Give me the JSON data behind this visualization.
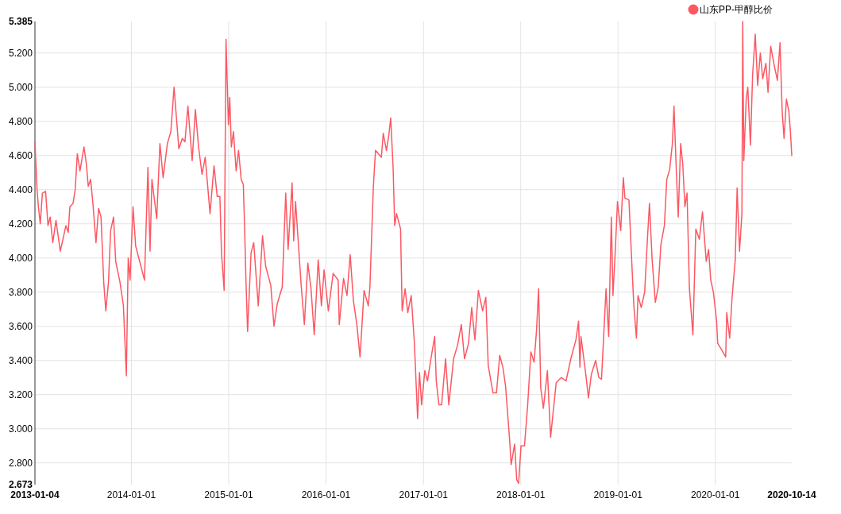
{
  "chart_data": {
    "type": "line",
    "legend": "top right",
    "grid": true,
    "xlim": [
      "2013-01-04",
      "2020-10-14"
    ],
    "xticks": [
      "2013-01-04",
      "2014-01-01",
      "2015-01-01",
      "2016-01-01",
      "2017-01-01",
      "2018-01-01",
      "2019-01-01",
      "2020-01-01",
      "2020-10-14"
    ],
    "ylim": [
      2.673,
      5.385
    ],
    "yticks": [
      {
        "value": 2.673,
        "label": "2.673"
      },
      {
        "value": 2.8,
        "label": "2.800"
      },
      {
        "value": 3.0,
        "label": "3.000"
      },
      {
        "value": 3.2,
        "label": "3.200"
      },
      {
        "value": 3.4,
        "label": "3.400"
      },
      {
        "value": 3.6,
        "label": "3.600"
      },
      {
        "value": 3.8,
        "label": "3.800"
      },
      {
        "value": 4.0,
        "label": "4.000"
      },
      {
        "value": 4.2,
        "label": "4.200"
      },
      {
        "value": 4.4,
        "label": "4.400"
      },
      {
        "value": 4.6,
        "label": "4.600"
      },
      {
        "value": 4.8,
        "label": "4.800"
      },
      {
        "value": 5.0,
        "label": "5.000"
      },
      {
        "value": 5.2,
        "label": "5.200"
      },
      {
        "value": 5.385,
        "label": "5.385"
      }
    ],
    "series": [
      {
        "name": "山东PP-甲醇比价",
        "color": "#fc5863",
        "x": [
          "2013-01-04",
          "2013-01-12",
          "2013-01-17",
          "2013-01-24",
          "2013-02-01",
          "2013-02-13",
          "2013-02-22",
          "2013-03-02",
          "2013-03-12",
          "2013-03-24",
          "2013-04-09",
          "2013-04-22",
          "2013-04-30",
          "2013-05-09",
          "2013-05-15",
          "2013-05-27",
          "2013-06-04",
          "2013-06-12",
          "2013-06-22",
          "2013-07-07",
          "2013-07-16",
          "2013-07-23",
          "2013-08-01",
          "2013-08-10",
          "2013-08-21",
          "2013-08-31",
          "2013-09-09",
          "2013-09-19",
          "2013-09-27",
          "2013-10-07",
          "2013-10-15",
          "2013-10-26",
          "2013-11-03",
          "2013-11-19",
          "2013-12-02",
          "2013-12-13",
          "2013-12-20",
          "2013-12-27",
          "2014-01-07",
          "2014-01-17",
          "2014-02-01",
          "2014-02-19",
          "2014-03-04",
          "2014-03-12",
          "2014-03-19",
          "2014-04-06",
          "2014-04-18",
          "2014-04-30",
          "2014-05-16",
          "2014-05-29",
          "2014-06-10",
          "2014-06-28",
          "2014-07-11",
          "2014-07-21",
          "2014-08-01",
          "2014-08-17",
          "2014-08-29",
          "2014-09-10",
          "2014-09-23",
          "2014-10-05",
          "2014-10-23",
          "2014-11-07",
          "2014-11-19",
          "2014-11-29",
          "2014-12-05",
          "2014-12-15",
          "2014-12-22",
          "2014-12-31",
          "2015-01-05",
          "2015-01-11",
          "2015-01-19",
          "2015-01-29",
          "2015-02-07",
          "2015-02-17",
          "2015-02-25",
          "2015-03-02",
          "2015-03-07",
          "2015-03-13",
          "2015-03-26",
          "2015-04-05",
          "2015-04-22",
          "2015-05-08",
          "2015-05-20",
          "2015-06-08",
          "2015-06-20",
          "2015-07-02",
          "2015-07-21",
          "2015-08-03",
          "2015-08-12",
          "2015-08-27",
          "2015-09-02",
          "2015-09-09",
          "2015-09-21",
          "2015-09-30",
          "2015-10-12",
          "2015-10-25",
          "2015-11-06",
          "2015-11-18",
          "2015-12-03",
          "2015-12-15",
          "2015-12-25",
          "2016-01-10",
          "2016-01-28",
          "2016-02-16",
          "2016-02-20",
          "2016-03-07",
          "2016-03-20",
          "2016-04-01",
          "2016-04-13",
          "2016-04-26",
          "2016-05-08",
          "2016-05-23",
          "2016-06-08",
          "2016-06-14",
          "2016-06-27",
          "2016-07-05",
          "2016-07-27",
          "2016-08-03",
          "2016-08-15",
          "2016-08-24",
          "2016-08-31",
          "2016-09-09",
          "2016-09-15",
          "2016-09-22",
          "2016-10-07",
          "2016-10-13",
          "2016-10-24",
          "2016-11-03",
          "2016-11-16",
          "2016-11-28",
          "2016-12-10",
          "2016-12-17",
          "2016-12-25",
          "2017-01-06",
          "2017-01-16",
          "2017-01-31",
          "2017-02-12",
          "2017-02-18",
          "2017-02-28",
          "2017-03-10",
          "2017-03-25",
          "2017-04-06",
          "2017-04-24",
          "2017-05-09",
          "2017-05-23",
          "2017-06-04",
          "2017-06-19",
          "2017-07-01",
          "2017-07-13",
          "2017-07-26",
          "2017-08-11",
          "2017-08-23",
          "2017-09-01",
          "2017-09-19",
          "2017-10-02",
          "2017-10-14",
          "2017-10-26",
          "2017-11-05",
          "2017-11-20",
          "2017-11-26",
          "2017-12-09",
          "2017-12-17",
          "2017-12-24",
          "2018-01-02",
          "2018-01-15",
          "2018-01-27",
          "2018-02-08",
          "2018-02-20",
          "2018-03-01",
          "2018-03-09",
          "2018-03-17",
          "2018-03-27",
          "2018-04-11",
          "2018-04-23",
          "2018-05-14",
          "2018-06-02",
          "2018-06-20",
          "2018-07-08",
          "2018-07-27",
          "2018-08-06",
          "2018-08-11",
          "2018-08-15",
          "2018-09-02",
          "2018-09-12",
          "2018-09-23",
          "2018-10-09",
          "2018-10-21",
          "2018-10-31",
          "2018-11-11",
          "2018-11-17",
          "2018-11-27",
          "2018-12-07",
          "2018-12-13",
          "2018-12-22",
          "2018-12-30",
          "2019-01-11",
          "2019-01-21",
          "2019-01-27",
          "2019-02-11",
          "2019-02-20",
          "2019-03-01",
          "2019-03-11",
          "2019-03-17",
          "2019-03-29",
          "2019-04-11",
          "2019-04-21",
          "2019-04-29",
          "2019-05-09",
          "2019-05-21",
          "2019-06-01",
          "2019-06-11",
          "2019-06-24",
          "2019-07-03",
          "2019-07-14",
          "2019-07-24",
          "2019-07-30",
          "2019-08-08",
          "2019-08-15",
          "2019-08-24",
          "2019-09-01",
          "2019-09-09",
          "2019-09-17",
          "2019-09-26",
          "2019-10-09",
          "2019-10-20",
          "2019-11-02",
          "2019-11-14",
          "2019-11-28",
          "2019-12-07",
          "2019-12-15",
          "2019-12-25",
          "2020-01-06",
          "2020-01-10",
          "2020-01-22",
          "2020-02-09",
          "2020-02-13",
          "2020-02-24",
          "2020-03-04",
          "2020-03-16",
          "2020-03-23",
          "2020-04-01",
          "2020-04-10",
          "2020-04-13",
          "2020-04-17",
          "2020-04-26",
          "2020-05-02",
          "2020-05-12",
          "2020-05-20",
          "2020-05-30",
          "2020-06-08",
          "2020-06-18",
          "2020-06-27",
          "2020-07-09",
          "2020-07-17",
          "2020-07-27",
          "2020-08-09",
          "2020-08-21",
          "2020-08-31",
          "2020-09-08",
          "2020-09-15",
          "2020-09-24",
          "2020-10-03",
          "2020-10-09",
          "2020-10-14"
        ],
        "values": [
          4.68,
          4.4,
          4.3,
          4.2,
          4.38,
          4.39,
          4.19,
          4.24,
          4.09,
          4.22,
          4.04,
          4.13,
          4.19,
          4.15,
          4.3,
          4.32,
          4.4,
          4.61,
          4.51,
          4.65,
          4.55,
          4.42,
          4.46,
          4.31,
          4.09,
          4.29,
          4.24,
          3.86,
          3.69,
          3.86,
          4.16,
          4.24,
          3.98,
          3.86,
          3.72,
          3.31,
          4.0,
          3.87,
          4.3,
          4.07,
          3.98,
          3.87,
          4.53,
          4.04,
          4.46,
          4.23,
          4.67,
          4.47,
          4.67,
          4.74,
          5.0,
          4.64,
          4.7,
          4.68,
          4.89,
          4.57,
          4.87,
          4.65,
          4.49,
          4.59,
          4.26,
          4.54,
          4.36,
          4.36,
          4.03,
          3.81,
          5.28,
          4.78,
          4.94,
          4.65,
          4.74,
          4.51,
          4.63,
          4.46,
          4.43,
          4.16,
          3.86,
          3.57,
          4.03,
          4.09,
          3.72,
          4.13,
          3.95,
          3.84,
          3.6,
          3.73,
          3.83,
          4.38,
          4.05,
          4.44,
          4.1,
          4.33,
          4.05,
          3.84,
          3.61,
          3.97,
          3.82,
          3.55,
          3.99,
          3.72,
          3.93,
          3.69,
          3.91,
          3.87,
          3.61,
          3.88,
          3.78,
          4.02,
          3.75,
          3.61,
          3.42,
          3.81,
          3.72,
          3.83,
          4.42,
          4.63,
          4.59,
          4.73,
          4.63,
          4.72,
          4.82,
          4.53,
          4.19,
          4.26,
          4.17,
          3.69,
          3.82,
          3.68,
          3.78,
          3.5,
          3.06,
          3.33,
          3.14,
          3.34,
          3.28,
          3.43,
          3.54,
          3.28,
          3.14,
          3.14,
          3.41,
          3.14,
          3.41,
          3.49,
          3.61,
          3.41,
          3.5,
          3.71,
          3.52,
          3.81,
          3.69,
          3.77,
          3.37,
          3.21,
          3.21,
          3.43,
          3.36,
          3.25,
          2.94,
          2.79,
          2.91,
          2.7,
          2.68,
          2.9,
          2.9,
          3.14,
          3.45,
          3.39,
          3.57,
          3.82,
          3.24,
          3.12,
          3.34,
          2.95,
          3.27,
          3.3,
          3.28,
          3.41,
          3.52,
          3.63,
          3.36,
          3.54,
          3.32,
          3.18,
          3.32,
          3.4,
          3.3,
          3.29,
          3.63,
          3.82,
          3.54,
          4.24,
          3.78,
          4.05,
          4.33,
          4.16,
          4.47,
          4.35,
          4.34,
          4.03,
          3.73,
          3.53,
          3.78,
          3.71,
          3.8,
          4.1,
          4.32,
          3.99,
          3.74,
          3.83,
          4.08,
          4.19,
          4.46,
          4.52,
          4.67,
          4.89,
          4.5,
          4.24,
          4.67,
          4.55,
          4.3,
          4.38,
          3.82,
          3.55,
          4.17,
          4.11,
          4.27,
          3.98,
          4.05,
          3.87,
          3.8,
          3.63,
          3.5,
          3.47,
          3.42,
          3.68,
          3.53,
          3.77,
          3.99,
          4.41,
          4.04,
          4.26,
          5.385,
          4.57,
          4.93,
          5.0,
          4.66,
          5.07,
          5.31,
          5.01,
          5.2,
          5.05,
          5.14,
          4.97,
          5.24,
          5.13,
          5.04,
          5.26,
          4.86,
          4.7,
          4.93,
          4.86,
          4.74,
          4.6
        ]
      }
    ]
  }
}
